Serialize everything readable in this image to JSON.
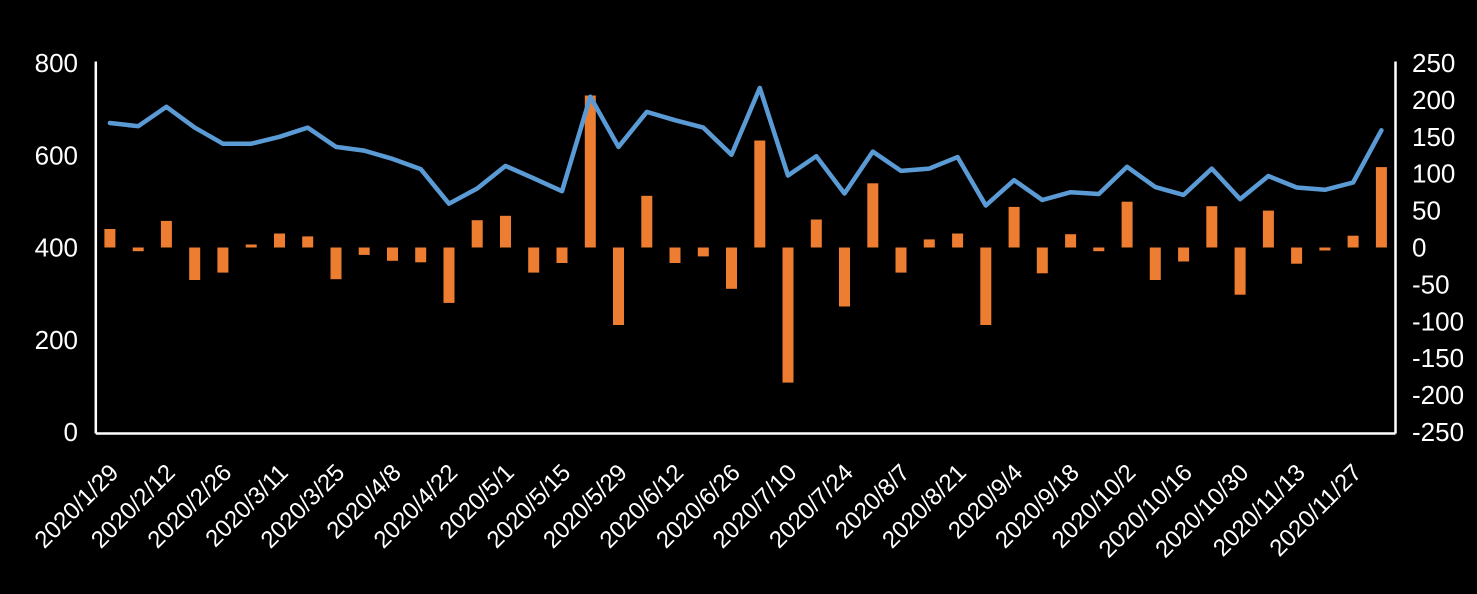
{
  "chart_data": {
    "type": "combo",
    "subtypes": [
      "line",
      "bar"
    ],
    "title": "",
    "xlabel": "",
    "ylabel_left": "",
    "ylabel_right": "",
    "background_color": "#000000",
    "text_color": "#FFFFFF",
    "axis_line_color": "#FFFFFF",
    "grid": "off",
    "legend": "none",
    "n_points": 46,
    "x_tick_every": 2,
    "x_tick_labels": [
      "2020/1/29",
      "2020/2/12",
      "2020/2/26",
      "2020/3/11",
      "2020/3/25",
      "2020/4/8",
      "2020/4/22",
      "2020/5/1",
      "2020/5/15",
      "2020/5/29",
      "2020/6/12",
      "2020/6/26",
      "2020/7/10",
      "2020/7/24",
      "2020/8/7",
      "2020/8/21",
      "2020/9/4",
      "2020/9/18",
      "2020/10/2",
      "2020/10/16",
      "2020/10/30",
      "2020/11/13",
      "2020/11/27"
    ],
    "left_axis": {
      "min": 0,
      "max": 800,
      "step": 200,
      "tick_labels": [
        "800",
        "600",
        "400",
        "200",
        "0"
      ]
    },
    "right_axis": {
      "min": -250,
      "max": 250,
      "step": 50,
      "tick_labels": [
        "250",
        "200",
        "150",
        "100",
        "50",
        "0",
        "-50",
        "-100",
        "-150",
        "-200",
        "-250"
      ]
    },
    "series": [
      {
        "name": "line-series",
        "type": "line",
        "axis": "left",
        "color": "#5B9BD5",
        "values": [
          670,
          663,
          705,
          660,
          625,
          625,
          640,
          660,
          618,
          610,
          592,
          570,
          495,
          528,
          577,
          550,
          522,
          727,
          618,
          694,
          676,
          660,
          601,
          746,
          556,
          598,
          517,
          608,
          566,
          571,
          596,
          491,
          546,
          503,
          520,
          516,
          575,
          531,
          514,
          571,
          505,
          555,
          530,
          525,
          541,
          654
        ]
      },
      {
        "name": "bar-series",
        "type": "bar",
        "axis": "right",
        "color": "#ED7D31",
        "values": [
          25,
          -5,
          36,
          -44,
          -34,
          4,
          19,
          15,
          -43,
          -10,
          -18,
          -20,
          -75,
          37,
          43,
          -34,
          -21,
          206,
          -105,
          70,
          -21,
          -12,
          -56,
          145,
          -183,
          38,
          -80,
          87,
          -34,
          11,
          19,
          -105,
          55,
          -35,
          18,
          -5,
          62,
          -44,
          -19,
          56,
          -64,
          50,
          -22,
          -4,
          16,
          109
        ]
      }
    ]
  }
}
